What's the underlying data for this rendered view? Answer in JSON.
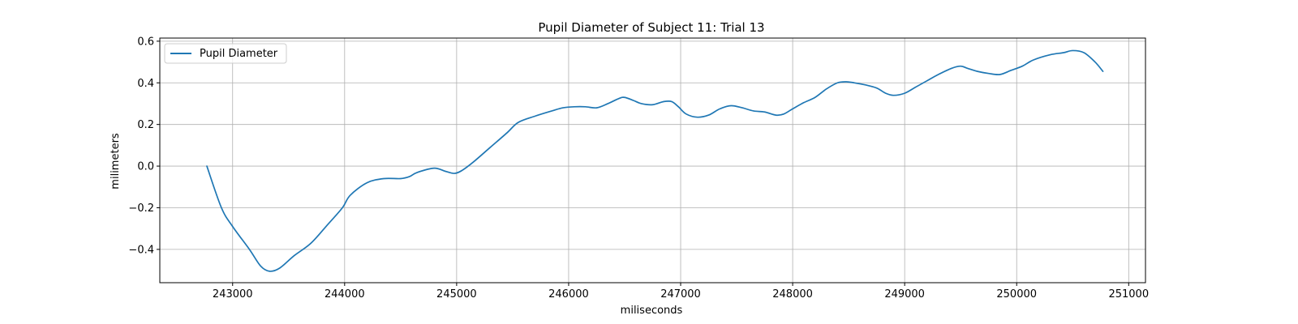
{
  "chart_data": {
    "type": "line",
    "title": "Pupil Diameter of Subject 11: Trial 13",
    "xlabel": "miliseconds",
    "ylabel": "milimeters",
    "xlim": [
      242350,
      251150
    ],
    "ylim": [
      -0.56,
      0.615
    ],
    "xticks": [
      243000,
      244000,
      245000,
      246000,
      247000,
      248000,
      249000,
      250000,
      251000
    ],
    "yticks": [
      -0.4,
      -0.2,
      0.0,
      0.2,
      0.4,
      0.6
    ],
    "grid": true,
    "legend_position": "top-left",
    "series": [
      {
        "name": "Pupil Diameter",
        "color": "#1f77b4",
        "x": [
          242770,
          242900,
          243000,
          243150,
          243250,
          243330,
          243420,
          243550,
          243700,
          243850,
          243980,
          244050,
          244200,
          244350,
          244500,
          244580,
          244650,
          244800,
          244900,
          244980,
          245050,
          245150,
          245300,
          245450,
          245550,
          245700,
          245850,
          245950,
          246050,
          246150,
          246250,
          246350,
          246450,
          246500,
          246580,
          246650,
          246750,
          246850,
          246920,
          246980,
          247050,
          247150,
          247250,
          247350,
          247450,
          247550,
          247650,
          247750,
          247850,
          247920,
          248000,
          248100,
          248200,
          248300,
          248400,
          248480,
          248550,
          248650,
          248750,
          248830,
          248900,
          249000,
          249100,
          249200,
          249300,
          249420,
          249500,
          249560,
          249650,
          249750,
          249850,
          249950,
          250050,
          250150,
          250300,
          250420,
          250500,
          250600,
          250700,
          250770
        ],
        "y": [
          0.0,
          -0.2,
          -0.29,
          -0.4,
          -0.48,
          -0.505,
          -0.49,
          -0.43,
          -0.37,
          -0.28,
          -0.2,
          -0.14,
          -0.08,
          -0.06,
          -0.06,
          -0.05,
          -0.03,
          -0.01,
          -0.025,
          -0.035,
          -0.02,
          0.02,
          0.09,
          0.16,
          0.21,
          0.24,
          0.265,
          0.28,
          0.285,
          0.285,
          0.28,
          0.3,
          0.325,
          0.33,
          0.315,
          0.3,
          0.295,
          0.31,
          0.31,
          0.285,
          0.25,
          0.235,
          0.245,
          0.275,
          0.29,
          0.28,
          0.265,
          0.26,
          0.245,
          0.25,
          0.275,
          0.305,
          0.33,
          0.37,
          0.4,
          0.405,
          0.4,
          0.39,
          0.375,
          0.35,
          0.34,
          0.35,
          0.38,
          0.41,
          0.44,
          0.47,
          0.48,
          0.47,
          0.455,
          0.445,
          0.44,
          0.46,
          0.48,
          0.51,
          0.535,
          0.545,
          0.555,
          0.545,
          0.5,
          0.455
        ]
      }
    ]
  }
}
